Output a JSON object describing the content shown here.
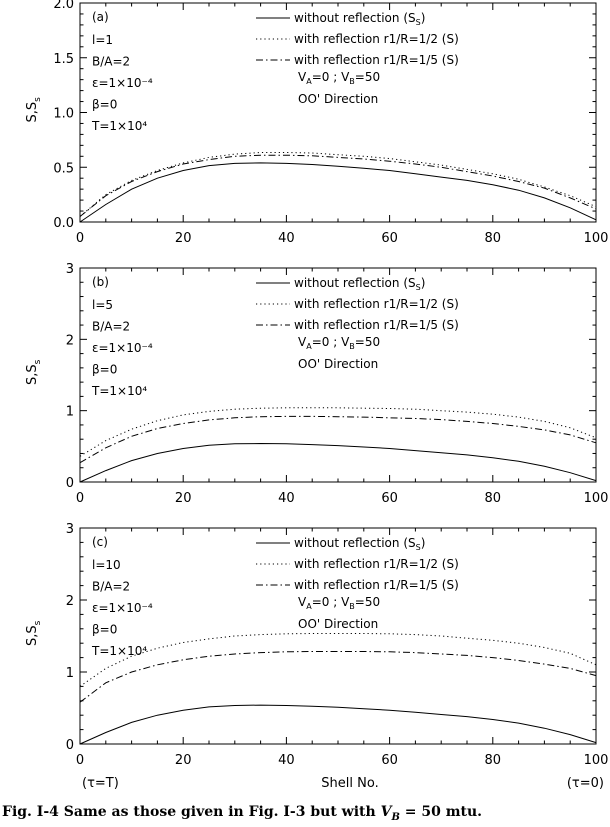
{
  "chart_data": [
    {
      "type": "line",
      "panel_label": "(a)",
      "ylabel": "S,S",
      "ylabel_sub": "s",
      "xlim": [
        0,
        100
      ],
      "ylim": [
        0,
        2.0
      ],
      "xticks": [
        "0",
        "20",
        "40",
        "60",
        "80",
        "100"
      ],
      "yticks": [
        "0.0",
        "0.5",
        "1.0",
        "1.5",
        "2.0"
      ],
      "params": [
        "l=1",
        "B/A=2",
        "ε=1×10⁻⁴",
        "β=0",
        "T=1×10⁴"
      ],
      "legend": [
        {
          "label": "without reflection (S",
          "sub": "S",
          "tail": ")",
          "style": "solid"
        },
        {
          "label": "with reflection r1/R=1/2 (S)",
          "style": "dotted"
        },
        {
          "label": "with reflection r1/R=1/5 (S)",
          "style": "dashdot"
        }
      ],
      "annotations": {
        "va": "V",
        "va_sub": "A",
        "va_val": "=0 ; V",
        "vb_sub": "B",
        "vb_val": "=50",
        "direction": "OO' Direction"
      },
      "x": [
        0,
        5,
        10,
        15,
        20,
        25,
        30,
        35,
        40,
        45,
        50,
        55,
        60,
        65,
        70,
        75,
        80,
        85,
        90,
        95,
        100
      ],
      "series": [
        {
          "style": "solid",
          "values": [
            0.0,
            0.16,
            0.3,
            0.4,
            0.47,
            0.515,
            0.535,
            0.54,
            0.535,
            0.525,
            0.51,
            0.49,
            0.47,
            0.44,
            0.41,
            0.38,
            0.34,
            0.29,
            0.22,
            0.13,
            0.02
          ]
        },
        {
          "style": "dotted",
          "values": [
            0.05,
            0.25,
            0.38,
            0.47,
            0.54,
            0.59,
            0.62,
            0.635,
            0.635,
            0.63,
            0.615,
            0.6,
            0.58,
            0.55,
            0.52,
            0.48,
            0.44,
            0.39,
            0.32,
            0.24,
            0.14
          ]
        },
        {
          "style": "dashdot",
          "values": [
            0.05,
            0.24,
            0.37,
            0.46,
            0.53,
            0.57,
            0.6,
            0.61,
            0.61,
            0.605,
            0.59,
            0.575,
            0.555,
            0.53,
            0.5,
            0.46,
            0.42,
            0.37,
            0.31,
            0.22,
            0.12
          ]
        }
      ]
    },
    {
      "type": "line",
      "panel_label": "(b)",
      "ylabel": "S,S",
      "ylabel_sub": "s",
      "xlim": [
        0,
        100
      ],
      "ylim": [
        0,
        3
      ],
      "xticks": [
        "0",
        "20",
        "40",
        "60",
        "80",
        "100"
      ],
      "yticks": [
        "0",
        "1",
        "2",
        "3"
      ],
      "params": [
        "l=5",
        "B/A=2",
        "ε=1×10⁻⁴",
        "β=0",
        "T=1×10⁴"
      ],
      "legend": [
        {
          "label": "without reflection (S",
          "sub": "S",
          "tail": ")",
          "style": "solid"
        },
        {
          "label": "with reflection r1/R=1/2 (S)",
          "style": "dotted"
        },
        {
          "label": "with reflection r1/R=1/5 (S)",
          "style": "dashdot"
        }
      ],
      "annotations": {
        "va": "V",
        "va_sub": "A",
        "va_val": "=0 ; V",
        "vb_sub": "B",
        "vb_val": "=50",
        "direction": "OO' Direction"
      },
      "x": [
        0,
        5,
        10,
        15,
        20,
        25,
        30,
        35,
        40,
        45,
        50,
        55,
        60,
        65,
        70,
        75,
        80,
        85,
        90,
        95,
        100
      ],
      "series": [
        {
          "style": "solid",
          "values": [
            0.0,
            0.16,
            0.3,
            0.4,
            0.47,
            0.515,
            0.535,
            0.54,
            0.535,
            0.525,
            0.51,
            0.49,
            0.47,
            0.44,
            0.41,
            0.38,
            0.34,
            0.29,
            0.22,
            0.13,
            0.02
          ]
        },
        {
          "style": "dotted",
          "values": [
            0.36,
            0.58,
            0.74,
            0.86,
            0.94,
            0.99,
            1.02,
            1.035,
            1.04,
            1.04,
            1.04,
            1.035,
            1.03,
            1.02,
            1.0,
            0.98,
            0.95,
            0.91,
            0.85,
            0.76,
            0.62
          ]
        },
        {
          "style": "dashdot",
          "values": [
            0.27,
            0.48,
            0.64,
            0.75,
            0.82,
            0.87,
            0.9,
            0.915,
            0.92,
            0.92,
            0.915,
            0.91,
            0.9,
            0.89,
            0.875,
            0.85,
            0.82,
            0.78,
            0.73,
            0.66,
            0.55
          ]
        }
      ]
    },
    {
      "type": "line",
      "panel_label": "(c)",
      "ylabel": "S,S",
      "ylabel_sub": "s",
      "xlabel": "Shell No.",
      "x_left_note": "(τ=T)",
      "x_right_note": "(τ=0)",
      "xlim": [
        0,
        100
      ],
      "ylim": [
        0,
        3
      ],
      "xticks": [
        "0",
        "20",
        "40",
        "60",
        "80",
        "100"
      ],
      "yticks": [
        "0",
        "1",
        "2",
        "3"
      ],
      "params": [
        "l=10",
        "B/A=2",
        "ε=1×10⁻⁴",
        "β=0",
        "T=1×10⁴"
      ],
      "legend": [
        {
          "label": "without reflection (S",
          "sub": "S",
          "tail": ")",
          "style": "solid"
        },
        {
          "label": "with reflection r1/R=1/2 (S)",
          "style": "dotted"
        },
        {
          "label": "with reflection r1/R=1/5 (S)",
          "style": "dashdot"
        }
      ],
      "annotations": {
        "va": "V",
        "va_sub": "A",
        "va_val": "=0 ; V",
        "vb_sub": "B",
        "vb_val": "=50",
        "direction": "OO' Direction"
      },
      "x": [
        0,
        5,
        10,
        15,
        20,
        25,
        30,
        35,
        40,
        45,
        50,
        55,
        60,
        65,
        70,
        75,
        80,
        85,
        90,
        95,
        100
      ],
      "series": [
        {
          "style": "solid",
          "values": [
            0.0,
            0.16,
            0.3,
            0.4,
            0.47,
            0.515,
            0.535,
            0.54,
            0.535,
            0.525,
            0.51,
            0.49,
            0.47,
            0.44,
            0.41,
            0.38,
            0.34,
            0.29,
            0.22,
            0.13,
            0.02
          ]
        },
        {
          "style": "dotted",
          "values": [
            0.8,
            1.05,
            1.22,
            1.33,
            1.41,
            1.46,
            1.5,
            1.52,
            1.53,
            1.535,
            1.535,
            1.535,
            1.53,
            1.52,
            1.5,
            1.47,
            1.44,
            1.4,
            1.34,
            1.26,
            1.1
          ]
        },
        {
          "style": "dashdot",
          "values": [
            0.58,
            0.85,
            1.0,
            1.1,
            1.17,
            1.22,
            1.25,
            1.27,
            1.28,
            1.285,
            1.285,
            1.285,
            1.28,
            1.27,
            1.25,
            1.23,
            1.2,
            1.16,
            1.11,
            1.05,
            0.95
          ]
        }
      ]
    }
  ],
  "caption": {
    "prefix": "Fig. I-4 Same as those given in Fig. I-3 but with ",
    "var": "V",
    "var_sub": "B",
    "suffix": " = 50 mtu."
  }
}
